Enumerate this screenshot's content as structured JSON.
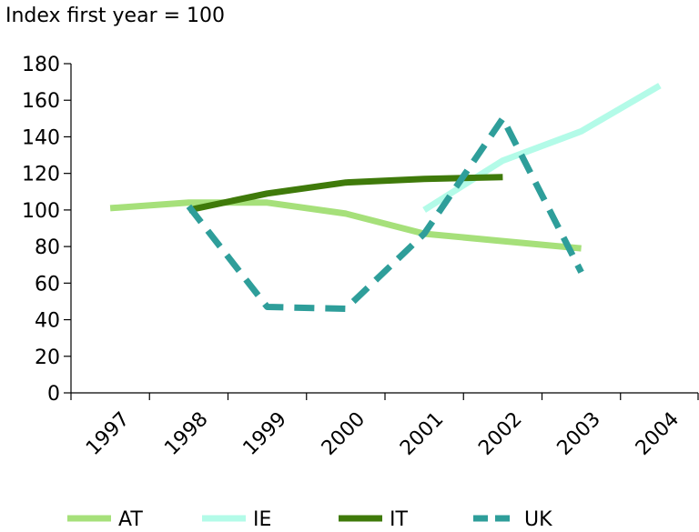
{
  "chart_data": {
    "type": "line",
    "ylabel": "Index first year = 100",
    "xlabel": "",
    "categories": [
      "1997",
      "1998",
      "1999",
      "2000",
      "2001",
      "2002",
      "2003",
      "2004"
    ],
    "ylim": [
      0,
      180
    ],
    "yticks": [
      0,
      20,
      40,
      60,
      80,
      100,
      120,
      140,
      160,
      180
    ],
    "grid": false,
    "legend_position": "bottom",
    "series": [
      {
        "name": "AT",
        "color": "#a6e07a",
        "dash": "solid",
        "values": [
          101,
          104,
          104,
          98,
          87,
          83,
          79,
          null
        ]
      },
      {
        "name": "IE",
        "color": "#b3fbe8",
        "dash": "solid",
        "values": [
          null,
          null,
          null,
          null,
          100,
          127,
          143,
          168
        ]
      },
      {
        "name": "IT",
        "color": "#3f7a0a",
        "dash": "solid",
        "values": [
          null,
          100,
          109,
          115,
          117,
          118,
          null,
          null
        ]
      },
      {
        "name": "UK",
        "color": "#2e9e9a",
        "dash": "dashed",
        "values": [
          null,
          102,
          47,
          46,
          87,
          150,
          66,
          null
        ]
      }
    ]
  }
}
